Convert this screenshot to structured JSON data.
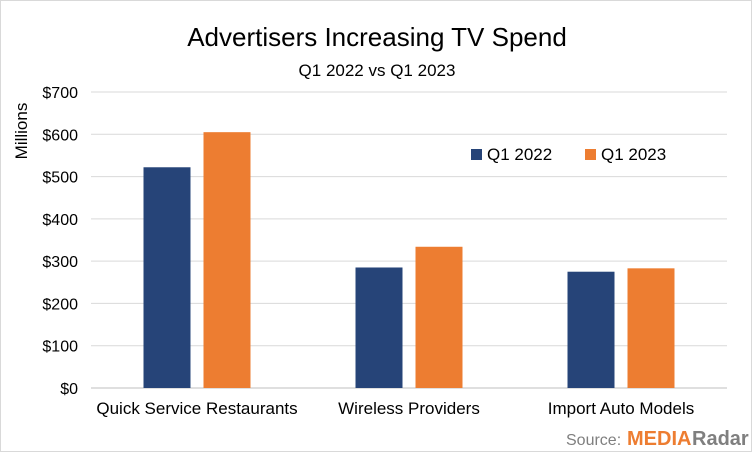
{
  "chart_data": {
    "type": "bar",
    "title": "Advertisers Increasing TV Spend",
    "subtitle": "Q1 2022 vs Q1 2023",
    "ylabel": "Millions",
    "xlabel": "",
    "categories": [
      "Quick Service Restaurants",
      "Wireless Providers",
      "Import Auto Models"
    ],
    "series": [
      {
        "name": "Q1 2022",
        "color": "#264478",
        "values": [
          522,
          285,
          275
        ]
      },
      {
        "name": "Q1 2023",
        "color": "#ed7d31",
        "values": [
          605,
          334,
          283
        ]
      }
    ],
    "ylim": [
      0,
      700
    ],
    "yticks": [
      0,
      100,
      200,
      300,
      400,
      500,
      600,
      700
    ],
    "ytick_labels": [
      "$0",
      "$100",
      "$200",
      "$300",
      "$400",
      "$500",
      "$600",
      "$700"
    ],
    "grid": true,
    "legend_position": "top-right"
  },
  "source": {
    "prefix": "Source:",
    "brand_part1": "MEDIA",
    "brand_part2": "Radar",
    "brand_color1": "#ed7d31",
    "brand_color2": "#7f7f7f"
  }
}
